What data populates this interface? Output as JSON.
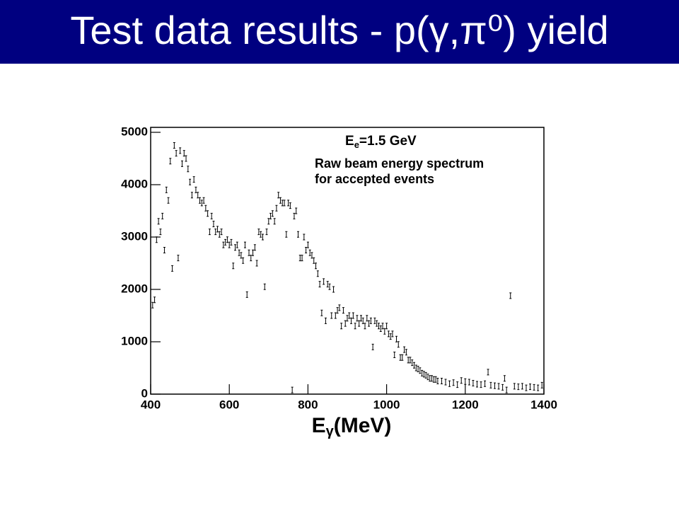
{
  "chart_data": {
    "type": "scatter",
    "title": "Test data results - p(γ,π⁰) yield",
    "xlabel": [
      "E",
      "γ",
      "(MeV)"
    ],
    "annotations": [
      [
        "E",
        "e",
        "=1.5 GeV"
      ],
      "Raw beam energy spectrum",
      "for accepted events"
    ],
    "color": "#000000",
    "xlim": [
      400,
      1400
    ],
    "xticks": [
      400,
      600,
      800,
      1000,
      1200,
      1400
    ],
    "ylim": [
      0,
      5000
    ],
    "yticks": [
      0,
      1000,
      2000,
      3000,
      4000,
      5000
    ],
    "x": [
      405,
      410,
      415,
      420,
      425,
      430,
      435,
      440,
      445,
      450,
      455,
      460,
      465,
      470,
      475,
      480,
      485,
      490,
      495,
      500,
      505,
      510,
      515,
      520,
      525,
      530,
      535,
      540,
      545,
      550,
      555,
      560,
      565,
      570,
      575,
      580,
      585,
      590,
      595,
      600,
      605,
      610,
      615,
      620,
      625,
      630,
      635,
      640,
      645,
      650,
      655,
      660,
      665,
      670,
      675,
      680,
      685,
      690,
      695,
      700,
      705,
      710,
      715,
      720,
      725,
      730,
      735,
      740,
      745,
      750,
      755,
      760,
      765,
      770,
      775,
      780,
      785,
      790,
      795,
      800,
      805,
      810,
      815,
      820,
      825,
      830,
      835,
      840,
      845,
      850,
      855,
      860,
      865,
      870,
      875,
      880,
      885,
      890,
      895,
      900,
      905,
      910,
      915,
      920,
      925,
      930,
      935,
      940,
      945,
      950,
      955,
      960,
      965,
      970,
      975,
      980,
      985,
      990,
      995,
      1000,
      1005,
      1010,
      1015,
      1020,
      1025,
      1030,
      1035,
      1040,
      1045,
      1050,
      1055,
      1060,
      1065,
      1070,
      1075,
      1080,
      1085,
      1090,
      1095,
      1100,
      1105,
      1110,
      1115,
      1120,
      1125,
      1130,
      1140,
      1150,
      1160,
      1170,
      1180,
      1190,
      1200,
      1210,
      1220,
      1230,
      1240,
      1250,
      1258,
      1265,
      1275,
      1285,
      1295,
      1300,
      1305,
      1315,
      1325,
      1335,
      1345,
      1355,
      1365,
      1375,
      1385,
      1395
    ],
    "values": [
      1700,
      1800,
      2950,
      3300,
      3100,
      3400,
      2750,
      3900,
      3700,
      4450,
      2400,
      4750,
      4600,
      2600,
      4650,
      4400,
      4600,
      4500,
      4300,
      4050,
      3800,
      4100,
      3900,
      3800,
      3700,
      3650,
      3700,
      3550,
      3450,
      3100,
      3400,
      3250,
      3100,
      3150,
      3050,
      3100,
      2850,
      2900,
      2950,
      2850,
      2900,
      2450,
      2800,
      2850,
      2700,
      2650,
      2550,
      2850,
      1900,
      2700,
      2600,
      2700,
      2800,
      2500,
      3100,
      3050,
      3000,
      2050,
      3100,
      3300,
      3400,
      3450,
      3300,
      3550,
      3800,
      3700,
      3650,
      3650,
      3050,
      3650,
      3600,
      80,
      3400,
      3500,
      3050,
      2600,
      2600,
      3000,
      2750,
      2850,
      2700,
      2650,
      2550,
      2450,
      2300,
      2100,
      1550,
      2150,
      1400,
      2100,
      2050,
      1500,
      2000,
      1500,
      1600,
      1650,
      1300,
      1600,
      1350,
      1450,
      1500,
      1400,
      1500,
      1300,
      1450,
      1350,
      1450,
      1400,
      1300,
      1450,
      1350,
      1400,
      900,
      1400,
      1350,
      1300,
      1250,
      1300,
      1200,
      1300,
      1150,
      1100,
      1150,
      750,
      1050,
      950,
      700,
      700,
      850,
      800,
      650,
      650,
      600,
      550,
      500,
      480,
      450,
      400,
      380,
      360,
      330,
      300,
      300,
      280,
      280,
      250,
      250,
      230,
      200,
      220,
      180,
      260,
      240,
      230,
      210,
      190,
      180,
      200,
      420,
      170,
      160,
      150,
      130,
      300,
      80,
      1880,
      150,
      140,
      150,
      120,
      140,
      130,
      120,
      170
    ]
  }
}
